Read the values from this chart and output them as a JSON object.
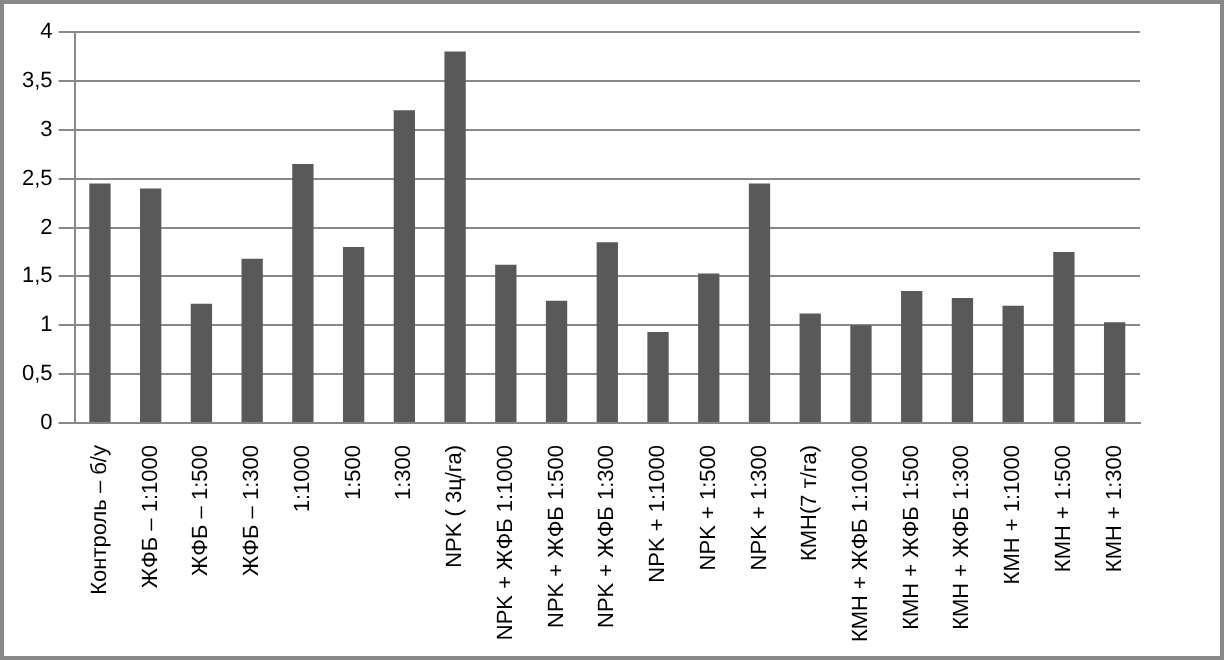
{
  "chart_data": {
    "type": "bar",
    "categories": [
      "Контроль – б/у",
      "ЖФБ – 1:1000",
      "ЖФБ – 1:500",
      "ЖФБ – 1:300",
      "1:1000",
      "1:500",
      "1:300",
      "NPK ( 3ц/га)",
      "NPK + ЖФБ 1:1000",
      "NPK + ЖФБ 1:500",
      "NPK + ЖФБ 1:300",
      "NPK + 1:1000",
      "NPK + 1:500",
      "NPK + 1:300",
      "КМН(7 т/га)",
      "КМН + ЖФБ 1:1000",
      "КМН + ЖФБ 1:500",
      "КМН + ЖФБ 1:300",
      "КМН + 1:1000",
      "КМН + 1:500",
      "КМН + 1:300"
    ],
    "values": [
      2.45,
      2.4,
      1.22,
      1.68,
      2.65,
      1.8,
      3.2,
      3.8,
      1.62,
      1.25,
      1.85,
      0.93,
      1.53,
      2.45,
      1.12,
      1.0,
      1.35,
      1.28,
      1.2,
      1.75,
      1.03
    ],
    "color": "#595959",
    "ylim": [
      0,
      4
    ],
    "yticks": [
      0,
      {
        "value": 0.5,
        "label": "0,5"
      },
      1,
      {
        "value": 1.5,
        "label": "1,5"
      },
      2,
      {
        "value": 2.5,
        "label": "2,5"
      },
      3,
      {
        "value": 3.5,
        "label": "3,5"
      },
      4
    ],
    "grid": "y"
  }
}
